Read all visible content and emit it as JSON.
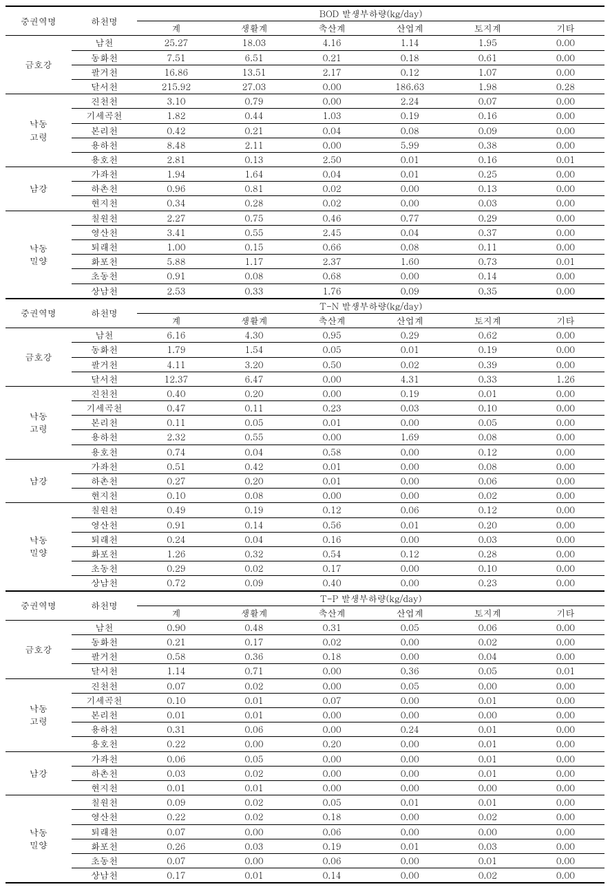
{
  "headers": {
    "region": "중권역명",
    "river": "하천명",
    "sum": "계",
    "life": "생활계",
    "livestock": "축산계",
    "industry": "산업계",
    "land": "토지계",
    "other": "기타"
  },
  "sections": [
    {
      "title": "BOD 발생부하량(kg/day)",
      "groups": [
        {
          "region": "금호강",
          "rows": [
            {
              "r": "남천",
              "v": [
                "25.27",
                "18.03",
                "4.16",
                "1.14",
                "1.95",
                "0.00"
              ]
            },
            {
              "r": "동화천",
              "v": [
                "7.51",
                "6.51",
                "0.21",
                "0.18",
                "0.61",
                "0.00"
              ]
            },
            {
              "r": "팔거천",
              "v": [
                "16.86",
                "13.51",
                "2.17",
                "0.12",
                "1.07",
                "0.00"
              ]
            },
            {
              "r": "달서천",
              "v": [
                "215.92",
                "27.03",
                "0.00",
                "186.63",
                "1.98",
                "0.28"
              ]
            }
          ]
        },
        {
          "region": "낙동\n고령",
          "rows": [
            {
              "r": "진천천",
              "v": [
                "3.10",
                "0.79",
                "0.00",
                "2.24",
                "0.07",
                "0.00"
              ]
            },
            {
              "r": "기세곡천",
              "v": [
                "1.82",
                "0.44",
                "1.03",
                "0.19",
                "0.16",
                "0.00"
              ]
            },
            {
              "r": "본리천",
              "v": [
                "0.42",
                "0.21",
                "0.04",
                "0.08",
                "0.09",
                "0.00"
              ]
            },
            {
              "r": "용하천",
              "v": [
                "8.48",
                "2.11",
                "0.00",
                "5.99",
                "0.38",
                "0.00"
              ]
            },
            {
              "r": "용호천",
              "v": [
                "2.81",
                "0.13",
                "2.50",
                "0.01",
                "0.16",
                "0.01"
              ]
            }
          ]
        },
        {
          "region": "남강",
          "rows": [
            {
              "r": "가좌천",
              "v": [
                "1.94",
                "1.64",
                "0.04",
                "0.01",
                "0.25",
                "0.00"
              ]
            },
            {
              "r": "하촌천",
              "v": [
                "0.96",
                "0.81",
                "0.02",
                "0.00",
                "0.13",
                "0.00"
              ]
            },
            {
              "r": "현지천",
              "v": [
                "0.34",
                "0.28",
                "0.02",
                "0.00",
                "0.03",
                "0.00"
              ]
            }
          ]
        },
        {
          "region": "낙동\n밀양",
          "rows": [
            {
              "r": "칠원천",
              "v": [
                "2.27",
                "0.75",
                "0.46",
                "0.77",
                "0.29",
                "0.00"
              ]
            },
            {
              "r": "영산천",
              "v": [
                "3.41",
                "0.55",
                "2.45",
                "0.04",
                "0.37",
                "0.00"
              ]
            },
            {
              "r": "퇴래천",
              "v": [
                "1.00",
                "0.15",
                "0.66",
                "0.08",
                "0.11",
                "0.00"
              ]
            },
            {
              "r": "화포천",
              "v": [
                "5.88",
                "1.17",
                "2.37",
                "1.60",
                "0.73",
                "0.01"
              ]
            },
            {
              "r": "초동천",
              "v": [
                "0.91",
                "0.08",
                "0.68",
                "0.00",
                "0.14",
                "0.00"
              ]
            },
            {
              "r": "상남천",
              "v": [
                "2.53",
                "0.33",
                "1.76",
                "0.09",
                "0.35",
                "0.00"
              ]
            }
          ]
        }
      ]
    },
    {
      "title": "T-N 발생부하량(kg/day)",
      "groups": [
        {
          "region": "금호강",
          "rows": [
            {
              "r": "남천",
              "v": [
                "6.16",
                "4.30",
                "0.95",
                "0.29",
                "0.62",
                "0.00"
              ]
            },
            {
              "r": "동화천",
              "v": [
                "1.79",
                "1.54",
                "0.05",
                "0.01",
                "0.19",
                "0.00"
              ]
            },
            {
              "r": "팔거천",
              "v": [
                "4.11",
                "3.20",
                "0.50",
                "0.02",
                "0.39",
                "0.00"
              ]
            },
            {
              "r": "달서천",
              "v": [
                "12.37",
                "6.47",
                "0.00",
                "4.31",
                "0.33",
                "1.26"
              ]
            }
          ]
        },
        {
          "region": "낙동\n고령",
          "rows": [
            {
              "r": "진천천",
              "v": [
                "0.40",
                "0.20",
                "0.00",
                "0.19",
                "0.01",
                "0.00"
              ]
            },
            {
              "r": "기세곡천",
              "v": [
                "0.47",
                "0.11",
                "0.23",
                "0.03",
                "0.10",
                "0.00"
              ]
            },
            {
              "r": "본리천",
              "v": [
                "0.11",
                "0.05",
                "0.01",
                "0.00",
                "0.05",
                "0.00"
              ]
            },
            {
              "r": "용하천",
              "v": [
                "2.32",
                "0.55",
                "0.00",
                "1.69",
                "0.08",
                "0.00"
              ]
            },
            {
              "r": "용호천",
              "v": [
                "0.74",
                "0.04",
                "0.58",
                "0.00",
                "0.12",
                "0.00"
              ]
            }
          ]
        },
        {
          "region": "남강",
          "rows": [
            {
              "r": "가좌천",
              "v": [
                "0.51",
                "0.42",
                "0.01",
                "0.00",
                "0.08",
                "0.00"
              ]
            },
            {
              "r": "하촌천",
              "v": [
                "0.27",
                "0.20",
                "0.01",
                "0.00",
                "0.06",
                "0.00"
              ]
            },
            {
              "r": "현지천",
              "v": [
                "0.10",
                "0.08",
                "0.00",
                "0.00",
                "0.02",
                "0.00"
              ]
            }
          ]
        },
        {
          "region": "낙동\n밀양",
          "rows": [
            {
              "r": "칠원천",
              "v": [
                "0.49",
                "0.19",
                "0.12",
                "0.06",
                "0.12",
                "0.00"
              ]
            },
            {
              "r": "영산천",
              "v": [
                "0.91",
                "0.14",
                "0.56",
                "0.01",
                "0.20",
                "0.00"
              ]
            },
            {
              "r": "퇴래천",
              "v": [
                "0.24",
                "0.04",
                "0.16",
                "0.00",
                "0.03",
                "0.00"
              ]
            },
            {
              "r": "화포천",
              "v": [
                "1.26",
                "0.32",
                "0.54",
                "0.12",
                "0.28",
                "0.00"
              ]
            },
            {
              "r": "초동천",
              "v": [
                "0.29",
                "0.02",
                "0.17",
                "0.00",
                "0.10",
                "0.00"
              ]
            },
            {
              "r": "상남천",
              "v": [
                "0.72",
                "0.09",
                "0.40",
                "0.00",
                "0.23",
                "0.00"
              ]
            }
          ]
        }
      ]
    },
    {
      "title": "T-P 발생부하량(kg/day)",
      "groups": [
        {
          "region": "금호강",
          "rows": [
            {
              "r": "남천",
              "v": [
                "0.90",
                "0.48",
                "0.31",
                "0.05",
                "0.06",
                "0.00"
              ]
            },
            {
              "r": "동화천",
              "v": [
                "0.21",
                "0.17",
                "0.02",
                "0.00",
                "0.02",
                "0.00"
              ]
            },
            {
              "r": "팔거천",
              "v": [
                "0.58",
                "0.36",
                "0.18",
                "0.00",
                "0.04",
                "0.00"
              ]
            },
            {
              "r": "달서천",
              "v": [
                "1.14",
                "0.71",
                "0.00",
                "0.36",
                "0.05",
                "0.01"
              ]
            }
          ]
        },
        {
          "region": "낙동\n고령",
          "rows": [
            {
              "r": "진천천",
              "v": [
                "0.07",
                "0.02",
                "0.00",
                "0.05",
                "0.00",
                "0.00"
              ]
            },
            {
              "r": "기세곡천",
              "v": [
                "0.10",
                "0.01",
                "0.07",
                "0.00",
                "0.01",
                "0.00"
              ]
            },
            {
              "r": "본리천",
              "v": [
                "0.01",
                "0.01",
                "0.00",
                "0.00",
                "0.00",
                "0.00"
              ]
            },
            {
              "r": "용하천",
              "v": [
                "0.31",
                "0.06",
                "0.00",
                "0.24",
                "0.01",
                "0.00"
              ]
            },
            {
              "r": "용호천",
              "v": [
                "0.22",
                "0.00",
                "0.20",
                "0.00",
                "0.01",
                "0.00"
              ]
            }
          ]
        },
        {
          "region": "남강",
          "rows": [
            {
              "r": "가좌천",
              "v": [
                "0.06",
                "0.05",
                "0.00",
                "0.00",
                "0.01",
                "0.00"
              ]
            },
            {
              "r": "하촌천",
              "v": [
                "0.03",
                "0.02",
                "0.00",
                "0.00",
                "0.01",
                "0.00"
              ]
            },
            {
              "r": "현지천",
              "v": [
                "0.01",
                "0.01",
                "0.00",
                "0.00",
                "0.00",
                "0.00"
              ]
            }
          ]
        },
        {
          "region": "낙동\n밀양",
          "rows": [
            {
              "r": "칠원천",
              "v": [
                "0.09",
                "0.02",
                "0.05",
                "0.01",
                "0.01",
                "0.00"
              ]
            },
            {
              "r": "영산천",
              "v": [
                "0.22",
                "0.02",
                "0.18",
                "0.00",
                "0.02",
                "0.00"
              ]
            },
            {
              "r": "퇴래천",
              "v": [
                "0.07",
                "0.00",
                "0.06",
                "0.00",
                "0.00",
                "0.00"
              ]
            },
            {
              "r": "화포천",
              "v": [
                "0.26",
                "0.03",
                "0.19",
                "0.01",
                "0.03",
                "0.00"
              ]
            },
            {
              "r": "초동천",
              "v": [
                "0.07",
                "0.00",
                "0.06",
                "0.00",
                "0.01",
                "0.00"
              ]
            },
            {
              "r": "상남천",
              "v": [
                "0.17",
                "0.01",
                "0.14",
                "0.00",
                "0.02",
                "0.00"
              ]
            }
          ]
        }
      ]
    }
  ],
  "col_widths": [
    "11%",
    "11%",
    "13%",
    "13%",
    "13%",
    "13%",
    "13%",
    "13%"
  ]
}
